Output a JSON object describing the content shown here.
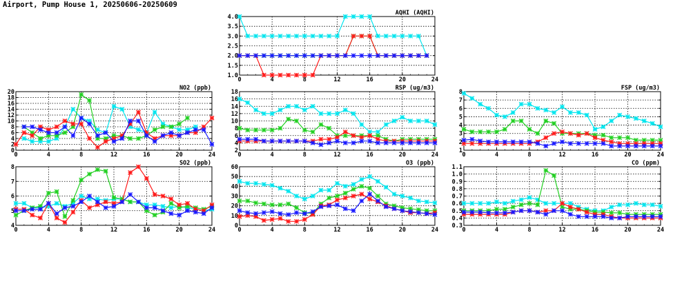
{
  "page": {
    "title": "Airport, Pump House 1, 20250606-20250609"
  },
  "colors": {
    "day1": "#00e5ee",
    "day2": "#22d022",
    "day3": "#ff1a1a",
    "day4": "#1a1aff"
  },
  "chart_data": [
    {
      "id": "aqhi",
      "type": "line",
      "title": "AQHI (AQHI)",
      "x": [
        0,
        1,
        2,
        3,
        4,
        5,
        6,
        7,
        8,
        9,
        10,
        11,
        12,
        13,
        14,
        15,
        16,
        17,
        18,
        19,
        20,
        21,
        22,
        23
      ],
      "xlim": [
        0,
        24
      ],
      "xticks": [
        "0",
        "4",
        "8",
        "12",
        "16",
        "20",
        "24"
      ],
      "ylim": [
        1.0,
        4.0
      ],
      "yticks": [
        "1.0",
        "1.5",
        "2.0",
        "2.5",
        "3.0",
        "3.5",
        "4.0"
      ],
      "series": [
        {
          "color": "#00e5ee",
          "values": [
            4,
            3,
            3,
            3,
            3,
            3,
            3,
            3,
            3,
            3,
            3,
            3,
            3,
            4,
            4,
            4,
            4,
            3,
            3,
            3,
            3,
            3,
            3,
            2
          ]
        },
        {
          "color": "#22d022",
          "values": [
            2,
            2,
            2,
            2,
            2,
            2,
            2,
            2,
            2,
            2,
            2,
            2,
            2,
            2,
            3,
            3,
            3,
            2,
            2,
            2,
            2,
            2,
            2,
            2
          ]
        },
        {
          "color": "#ff1a1a",
          "values": [
            2,
            2,
            2,
            1,
            1,
            1,
            1,
            1,
            1,
            1,
            2,
            2,
            2,
            2,
            3,
            3,
            3,
            2,
            2,
            2,
            2,
            2,
            2,
            2
          ]
        },
        {
          "color": "#1a1aff",
          "values": [
            2,
            2,
            2,
            2,
            2,
            2,
            2,
            2,
            2,
            2,
            2,
            2,
            2,
            2,
            2,
            2,
            2,
            2,
            2,
            2,
            2,
            2,
            2,
            2
          ]
        }
      ]
    },
    {
      "id": "no2",
      "type": "line",
      "title": "NO2 (ppb)",
      "x": [
        0,
        1,
        2,
        3,
        4,
        5,
        6,
        7,
        8,
        9,
        10,
        11,
        12,
        13,
        14,
        15,
        16,
        17,
        18,
        19,
        20,
        21,
        22,
        23,
        24
      ],
      "xlim": [
        0,
        24
      ],
      "xticks": [
        "0",
        "4",
        "8",
        "12",
        "16",
        "20",
        "24"
      ],
      "ylim": [
        0,
        20
      ],
      "yticks": [
        "0",
        "2",
        "4",
        "6",
        "8",
        "10",
        "12",
        "14",
        "16",
        "18",
        "20"
      ],
      "series": [
        {
          "color": "#00e5ee",
          "values": [
            null,
            4,
            3,
            3,
            3,
            4,
            8,
            14,
            11,
            10,
            7,
            6,
            15,
            14,
            8,
            7,
            6,
            13,
            9,
            8,
            7,
            7,
            8,
            null,
            null
          ]
        },
        {
          "color": "#22d022",
          "values": [
            null,
            8,
            6,
            4,
            5,
            5,
            6,
            8,
            19,
            17,
            4,
            4,
            5,
            5,
            4,
            4,
            5,
            7,
            8,
            8,
            9,
            11,
            null,
            null,
            null
          ]
        },
        {
          "color": "#ff1a1a",
          "values": [
            2,
            6,
            5,
            8,
            7,
            8,
            10,
            9,
            9,
            4,
            1,
            3,
            4,
            5,
            9,
            13,
            6,
            4,
            5,
            5,
            5,
            6,
            6,
            8,
            11
          ]
        },
        {
          "color": "#1a1aff",
          "values": [
            null,
            8,
            8,
            7,
            6,
            6,
            8,
            5,
            11,
            9,
            5,
            6,
            3,
            4,
            10,
            10,
            5,
            3,
            5,
            6,
            5,
            6,
            7,
            7,
            2
          ]
        }
      ]
    },
    {
      "id": "so2",
      "type": "line",
      "title": "SO2 (ppb)",
      "x": [
        0,
        1,
        2,
        3,
        4,
        5,
        6,
        7,
        8,
        9,
        10,
        11,
        12,
        13,
        14,
        15,
        16,
        17,
        18,
        19,
        20,
        21,
        22,
        23,
        24
      ],
      "xlim": [
        0,
        24
      ],
      "xticks": [
        "0",
        "4",
        "8",
        "12",
        "16",
        "20",
        "24"
      ],
      "ylim": [
        4,
        8
      ],
      "yticks": [
        "4",
        "5",
        "6",
        "7",
        "8"
      ],
      "series": [
        {
          "color": "#00e5ee",
          "values": [
            5.5,
            5.5,
            5.2,
            5.2,
            5.3,
            5.5,
            5.3,
            5.5,
            6.0,
            5.8,
            5.8,
            5.7,
            5.8,
            5.8,
            5.6,
            5.6,
            5.4,
            5.4,
            5.3,
            5.2,
            5.3,
            5.2,
            5.1,
            5.0,
            5.1
          ]
        },
        {
          "color": "#22d022",
          "values": [
            4.7,
            5.0,
            5.2,
            5.3,
            6.2,
            6.3,
            4.6,
            5.7,
            7.1,
            7.5,
            7.8,
            7.7,
            5.9,
            5.8,
            5.6,
            5.6,
            5.0,
            4.7,
            4.9,
            5.5,
            5.2,
            5.3,
            5.2,
            5.1,
            5.3
          ]
        },
        {
          "color": "#ff1a1a",
          "values": [
            5.1,
            5.1,
            4.7,
            4.5,
            5.5,
            4.5,
            4.2,
            4.9,
            5.7,
            5.2,
            5.4,
            5.6,
            5.5,
            5.6,
            7.6,
            8.0,
            7.2,
            6.1,
            6.0,
            5.8,
            5.4,
            5.5,
            5.1,
            5.0,
            5.4
          ]
        },
        {
          "color": "#1a1aff",
          "values": [
            5.0,
            5.0,
            5.1,
            5.1,
            5.5,
            4.8,
            5.2,
            5.3,
            5.6,
            6.0,
            5.6,
            5.2,
            5.3,
            5.6,
            6.1,
            5.6,
            5.2,
            5.2,
            5.0,
            4.8,
            4.7,
            5.0,
            4.9,
            4.8,
            5.2
          ]
        }
      ]
    },
    {
      "id": "rsp",
      "type": "line",
      "title": "RSP (ug/m3)",
      "x": [
        0,
        1,
        2,
        3,
        4,
        5,
        6,
        7,
        8,
        9,
        10,
        11,
        12,
        13,
        14,
        15,
        16,
        17,
        18,
        19,
        20,
        21,
        22,
        23,
        24
      ],
      "xlim": [
        0,
        24
      ],
      "xticks": [
        "0",
        "4",
        "8",
        "12",
        "16",
        "20",
        "24"
      ],
      "ylim": [
        2,
        18
      ],
      "yticks": [
        "2",
        "4",
        "6",
        "8",
        "10",
        "12",
        "14",
        "16",
        "18"
      ],
      "series": [
        {
          "color": "#00e5ee",
          "values": [
            16,
            15,
            13,
            12,
            12,
            13,
            14,
            14,
            13,
            14,
            12,
            12,
            12,
            13,
            12,
            9,
            7,
            7,
            9,
            10,
            11,
            10,
            10,
            10,
            9
          ]
        },
        {
          "color": "#22d022",
          "values": [
            8,
            7.5,
            7.5,
            7.5,
            7.5,
            8,
            10.5,
            10,
            7.5,
            7,
            9,
            8,
            6,
            6,
            6,
            6,
            6,
            6,
            5,
            4.5,
            5,
            5,
            5,
            5,
            5
          ]
        },
        {
          "color": "#ff1a1a",
          "values": [
            4.5,
            4.5,
            4.5,
            4.5,
            4.5,
            4.5,
            4.5,
            4.5,
            4.5,
            4.5,
            5,
            5,
            5.5,
            7,
            6,
            5.5,
            6,
            5,
            4.5,
            4.5,
            4.5,
            4.5,
            4.5,
            4.5,
            4.5
          ]
        },
        {
          "color": "#1a1aff",
          "values": [
            5,
            5,
            5,
            4.5,
            4.5,
            4.5,
            4.5,
            4.5,
            4.5,
            4,
            3.5,
            4,
            4.5,
            4,
            4,
            4.5,
            4.5,
            4,
            4,
            4,
            4,
            4,
            4,
            4,
            4
          ]
        }
      ]
    },
    {
      "id": "o3",
      "type": "line",
      "title": "O3 (ppb)",
      "x": [
        0,
        1,
        2,
        3,
        4,
        5,
        6,
        7,
        8,
        9,
        10,
        11,
        12,
        13,
        14,
        15,
        16,
        17,
        18,
        19,
        20,
        21,
        22,
        23,
        24
      ],
      "xlim": [
        0,
        24
      ],
      "xticks": [
        "0",
        "4",
        "8",
        "12",
        "16",
        "20",
        "24"
      ],
      "ylim": [
        0,
        60
      ],
      "yticks": [
        "0",
        "10",
        "20",
        "30",
        "40",
        "50",
        "60"
      ],
      "series": [
        {
          "color": "#00e5ee",
          "values": [
            45,
            43,
            43,
            42,
            41,
            38,
            35,
            30,
            27,
            30,
            36,
            36,
            43,
            40,
            42,
            47,
            50,
            45,
            39,
            32,
            30,
            28,
            25,
            24,
            23
          ]
        },
        {
          "color": "#22d022",
          "values": [
            25,
            25,
            23,
            22,
            21,
            21,
            22,
            18,
            13,
            12,
            22,
            28,
            30,
            33,
            37,
            40,
            38,
            30,
            22,
            20,
            18,
            17,
            16,
            15,
            15
          ]
        },
        {
          "color": "#ff1a1a",
          "values": [
            9,
            10,
            9,
            5,
            6,
            7,
            4,
            4,
            6,
            11,
            20,
            21,
            26,
            28,
            30,
            32,
            27,
            24,
            20,
            17,
            15,
            13,
            13,
            12,
            13
          ]
        },
        {
          "color": "#1a1aff",
          "values": [
            15,
            13,
            12,
            13,
            14,
            12,
            11,
            13,
            12,
            14,
            19,
            20,
            21,
            17,
            15,
            25,
            32,
            25,
            19,
            17,
            15,
            14,
            13,
            12,
            11
          ]
        }
      ]
    },
    {
      "id": "fsp",
      "type": "line",
      "title": "FSP (ug/m3)",
      "x": [
        0,
        1,
        2,
        3,
        4,
        5,
        6,
        7,
        8,
        9,
        10,
        11,
        12,
        13,
        14,
        15,
        16,
        17,
        18,
        19,
        20,
        21,
        22,
        23,
        24
      ],
      "xlim": [
        0,
        24
      ],
      "xticks": [
        "0",
        "4",
        "8",
        "12",
        "16",
        "20",
        "24"
      ],
      "ylim": [
        1,
        8
      ],
      "yticks": [
        "1",
        "2",
        "3",
        "4",
        "5",
        "6",
        "7",
        "8"
      ],
      "series": [
        {
          "color": "#00e5ee",
          "values": [
            7.8,
            7.2,
            6.5,
            6,
            5.2,
            5,
            5.5,
            6.5,
            6.5,
            6,
            5.8,
            5.5,
            6.2,
            5.5,
            5.5,
            5.2,
            3.5,
            3.8,
            4.5,
            5.2,
            5,
            4.8,
            4.5,
            4.2,
            3.8
          ]
        },
        {
          "color": "#22d022",
          "values": [
            3.5,
            3.2,
            3.2,
            3.2,
            3.2,
            3.5,
            4.5,
            4.5,
            3.5,
            3,
            4.5,
            4.2,
            3,
            3,
            3,
            3,
            2.8,
            2.8,
            2.5,
            2.5,
            2.5,
            2.2,
            2.2,
            2.2,
            2.2
          ]
        },
        {
          "color": "#ff1a1a",
          "values": [
            1.8,
            1.8,
            1.8,
            1.8,
            1.8,
            1.8,
            1.8,
            1.8,
            1.8,
            2,
            2.5,
            3,
            3.2,
            3,
            2.8,
            3,
            2.5,
            2.2,
            2,
            1.8,
            1.8,
            1.8,
            1.8,
            1.8,
            1.8
          ]
        },
        {
          "color": "#1a1aff",
          "values": [
            2.2,
            2.3,
            2.1,
            2,
            2,
            2,
            2,
            2,
            2,
            1.8,
            1.5,
            1.8,
            2,
            1.8,
            1.8,
            1.8,
            1.8,
            1.8,
            1.5,
            1.5,
            1.5,
            1.5,
            1.5,
            1.5,
            1.5
          ]
        }
      ]
    },
    {
      "id": "co",
      "type": "line",
      "title": "CO (ppm)",
      "x": [
        0,
        1,
        2,
        3,
        4,
        5,
        6,
        7,
        8,
        9,
        10,
        11,
        12,
        13,
        14,
        15,
        16,
        17,
        18,
        19,
        20,
        21,
        22,
        23,
        24
      ],
      "xlim": [
        0,
        24
      ],
      "xticks": [
        "0",
        "4",
        "8",
        "12",
        "16",
        "20",
        "24"
      ],
      "ylim": [
        0.3,
        1.1
      ],
      "yticks": [
        "0.3",
        "0.4",
        "0.5",
        "0.6",
        "0.7",
        "0.8",
        "0.9",
        "1.0",
        "1.1"
      ],
      "series": [
        {
          "color": "#00e5ee",
          "values": [
            0.6,
            0.6,
            0.6,
            0.6,
            0.62,
            0.6,
            0.63,
            0.65,
            0.68,
            0.65,
            0.6,
            0.6,
            0.6,
            0.6,
            0.55,
            0.52,
            0.5,
            0.5,
            0.55,
            0.58,
            0.58,
            0.6,
            0.58,
            0.58,
            0.56
          ]
        },
        {
          "color": "#22d022",
          "values": [
            0.5,
            0.5,
            0.5,
            0.5,
            0.52,
            0.52,
            0.55,
            0.58,
            0.6,
            0.58,
            1.05,
            0.98,
            0.55,
            0.52,
            0.52,
            0.5,
            0.48,
            0.48,
            0.47,
            0.47,
            0.45,
            0.45,
            0.45,
            0.45,
            0.45
          ]
        },
        {
          "color": "#ff1a1a",
          "values": [
            0.45,
            0.45,
            0.45,
            0.45,
            0.45,
            0.45,
            0.48,
            0.5,
            0.5,
            0.48,
            0.5,
            0.5,
            0.6,
            0.55,
            0.52,
            0.48,
            0.45,
            0.45,
            0.42,
            0.4,
            0.4,
            0.4,
            0.4,
            0.4,
            0.4
          ]
        },
        {
          "color": "#1a1aff",
          "values": [
            0.48,
            0.48,
            0.48,
            0.47,
            0.47,
            0.47,
            0.48,
            0.5,
            0.5,
            0.48,
            0.45,
            0.5,
            0.5,
            0.45,
            0.42,
            0.42,
            0.42,
            0.42,
            0.4,
            0.4,
            0.42,
            0.42,
            0.42,
            0.42,
            0.42
          ]
        }
      ]
    }
  ]
}
